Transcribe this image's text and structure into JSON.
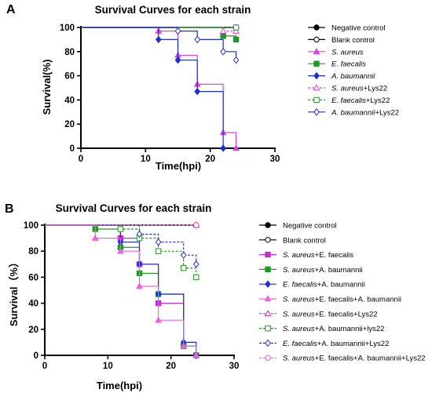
{
  "chart_data": [
    {
      "panel": "A",
      "type": "line",
      "step": true,
      "title": "Survival Curves for each strain",
      "xlabel": "Time(hpi)",
      "ylabel": "Survival(%)",
      "xlim": [
        0,
        30
      ],
      "ylim": [
        0,
        100
      ],
      "xticks": [
        0,
        10,
        20,
        30
      ],
      "yticks": [
        0,
        20,
        40,
        60,
        80,
        100
      ],
      "legend_position": "right",
      "series": [
        {
          "name": "Negative control",
          "color": "#000000",
          "dash": false,
          "marker": "filled-circle",
          "x": [
            0,
            24
          ],
          "y": [
            100,
            100
          ]
        },
        {
          "name": "Blank control",
          "color": "#000000",
          "dash": false,
          "marker": "open-circle",
          "x": [
            0,
            24
          ],
          "y": [
            100,
            100
          ]
        },
        {
          "name": "S. aureus",
          "italic_part": "S. aureus",
          "suffix": "",
          "color": "#e040e0",
          "dash": false,
          "marker": "filled-triangle",
          "x": [
            0,
            12,
            15,
            18,
            22,
            24
          ],
          "y": [
            100,
            97,
            77,
            53,
            13,
            0
          ]
        },
        {
          "name": "E. faecalis",
          "italic_part": "E. faecalis",
          "suffix": "",
          "color": "#1e9a1e",
          "dash": false,
          "marker": "filled-square",
          "x": [
            0,
            22,
            24
          ],
          "y": [
            100,
            93,
            90
          ]
        },
        {
          "name": "A. baumannii",
          "italic_part": "A. baumannii",
          "suffix": "",
          "color": "#1f2fd0",
          "dash": false,
          "marker": "filled-diamond",
          "x": [
            0,
            12,
            15,
            18,
            22
          ],
          "y": [
            100,
            90,
            73,
            47,
            0
          ]
        },
        {
          "name": "S. aureus+Lys22",
          "italic_part": "S. aureus",
          "suffix": "+Lys22",
          "color": "#e040e0",
          "dash": true,
          "marker": "open-triangle",
          "x": [
            0,
            22,
            24
          ],
          "y": [
            100,
            97,
            97
          ]
        },
        {
          "name": "E. faecalis+Lys22",
          "italic_part": "E. faecalis",
          "suffix": "+Lys22",
          "color": "#1e9a1e",
          "dash": true,
          "marker": "open-square",
          "x": [
            0,
            24
          ],
          "y": [
            100,
            100
          ]
        },
        {
          "name": "A. baumannii+Lys22",
          "italic_part": "A. baumannii",
          "suffix": "+Lys22",
          "color": "#1f2fd0",
          "dash": false,
          "marker": "open-diamond",
          "x": [
            0,
            15,
            18,
            22,
            24
          ],
          "y": [
            100,
            97,
            90,
            80,
            73
          ]
        }
      ]
    },
    {
      "panel": "B",
      "type": "line",
      "step": true,
      "title": "Survival Curves for each strain",
      "xlabel": "Time(hpi)",
      "ylabel": "Survival（%）",
      "xlim": [
        0,
        30
      ],
      "ylim": [
        0,
        100
      ],
      "xticks": [
        0,
        10,
        20,
        30
      ],
      "yticks": [
        0,
        20,
        40,
        60,
        80,
        100
      ],
      "legend_position": "right",
      "series": [
        {
          "name": "Negative control",
          "color": "#000000",
          "dash": false,
          "marker": "filled-circle",
          "x": [
            0,
            24
          ],
          "y": [
            100,
            100
          ]
        },
        {
          "name": "Blank control",
          "color": "#000000",
          "dash": false,
          "marker": "open-circle",
          "x": [
            0,
            24
          ],
          "y": [
            100,
            100
          ]
        },
        {
          "name": "S. aureus+E. faecalis",
          "italic_part": "S. aureus",
          "suffix": "+E. faecalis",
          "color": "#c030d0",
          "dash": false,
          "marker": "filled-square",
          "x": [
            0,
            12,
            15,
            18,
            22,
            24
          ],
          "y": [
            100,
            90,
            70,
            40,
            7,
            0
          ]
        },
        {
          "name": "S. aureus+A. baumannii",
          "italic_part": "S. aureus",
          "suffix": "+A. baumannii",
          "color": "#1e9a1e",
          "dash": false,
          "marker": "filled-square",
          "x": [
            0,
            8,
            12,
            15,
            18,
            22,
            24
          ],
          "y": [
            100,
            97,
            83,
            63,
            47,
            7,
            0
          ]
        },
        {
          "name": "E. faecalis+A. baumannii",
          "italic_part": "E. faecalis",
          "suffix": "+A. baumannii",
          "color": "#1f2fd0",
          "dash": false,
          "marker": "filled-diamond",
          "x": [
            0,
            12,
            15,
            18,
            22,
            24
          ],
          "y": [
            100,
            87,
            70,
            47,
            10,
            0
          ]
        },
        {
          "name": "S. aureus+E. faecalis+A. baumannii",
          "italic_part": "S. aureus",
          "suffix": "+E. faecalis+A. baumannii",
          "color": "#f060e0",
          "dash": false,
          "marker": "filled-triangle",
          "x": [
            0,
            8,
            12,
            15,
            18,
            22,
            24
          ],
          "y": [
            100,
            90,
            80,
            53,
            27,
            7,
            0
          ]
        },
        {
          "name": "S. aureus+E. faecalis+Lys22",
          "italic_part": "S. aureus",
          "suffix": "+E. faecalis+Lys22",
          "color": "#c030d0",
          "dash": true,
          "marker": "open-triangle",
          "x": [
            0,
            24
          ],
          "y": [
            100,
            100
          ]
        },
        {
          "name": "S. aureus+A. baumannii+lys22",
          "italic_part": "S. aureus",
          "suffix": "+A. baumannii+lys22",
          "color": "#1e9a1e",
          "dash": true,
          "marker": "open-square",
          "x": [
            0,
            12,
            15,
            18,
            22,
            24
          ],
          "y": [
            100,
            97,
            90,
            80,
            67,
            60
          ]
        },
        {
          "name": "E. faecalis+A. baumannii+Lys22",
          "italic_part": "E. faecalis",
          "suffix": "+A. baumannii+Lys22",
          "color": "#1f2fd0",
          "dash": true,
          "marker": "open-diamond",
          "x": [
            0,
            15,
            18,
            22,
            24
          ],
          "y": [
            100,
            93,
            87,
            77,
            70
          ]
        },
        {
          "name": "S. aureus+E. faecalis+A. baumannii+Lys22",
          "italic_part": "S. aureus",
          "suffix": "+E. faecalis+A. baumannii+Lys22",
          "color": "#f060e0",
          "dash": true,
          "marker": "open-circle",
          "x": [
            0,
            24
          ],
          "y": [
            100,
            100
          ]
        }
      ]
    }
  ]
}
